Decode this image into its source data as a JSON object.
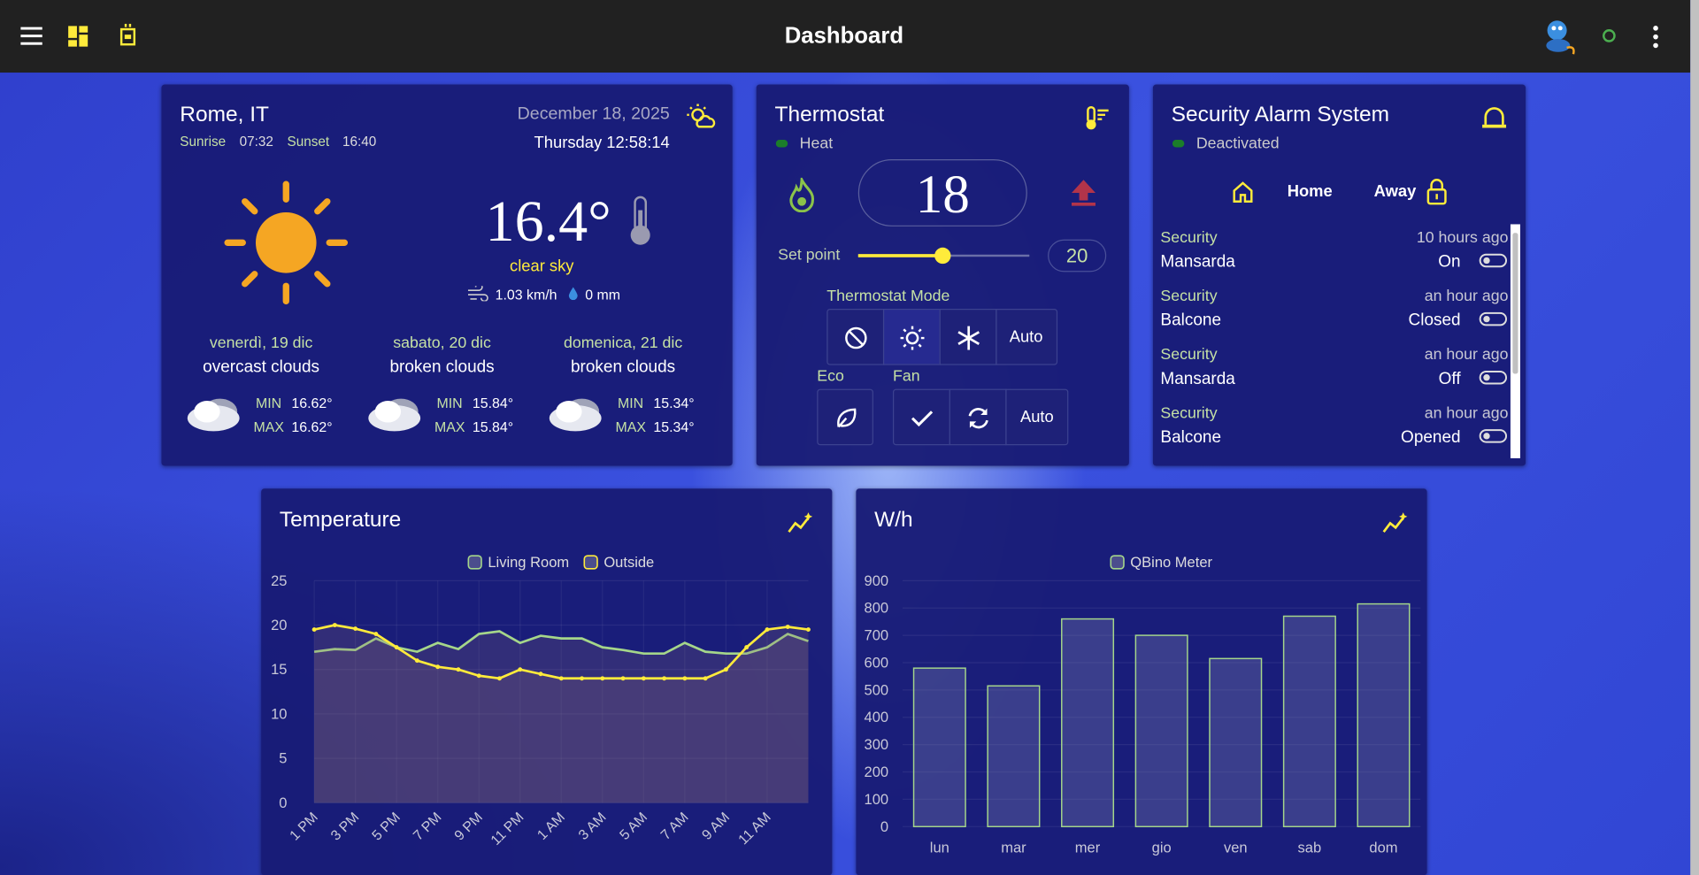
{
  "header": {
    "title": "Dashboard"
  },
  "weather": {
    "location": "Rome, IT",
    "sunrise_label": "Sunrise",
    "sunrise": "07:32",
    "sunset_label": "Sunset",
    "sunset": "16:40",
    "date": "December 18, 2025",
    "time": "Thursday 12:58:14",
    "temperature": "16.4°",
    "condition": "clear sky",
    "wind": "1.03 km/h",
    "rain": "0 mm",
    "forecast": [
      {
        "day": "venerdì, 19 dic",
        "condition": "overcast clouds",
        "min_label": "MIN",
        "min": "16.62°",
        "max_label": "MAX",
        "max": "16.62°"
      },
      {
        "day": "sabato, 20 dic",
        "condition": "broken clouds",
        "min_label": "MIN",
        "min": "15.84°",
        "max_label": "MAX",
        "max": "15.84°"
      },
      {
        "day": "domenica, 21 dic",
        "condition": "broken clouds",
        "min_label": "MIN",
        "min": "15.34°",
        "max_label": "MAX",
        "max": "15.34°"
      }
    ]
  },
  "thermostat": {
    "title": "Thermostat",
    "status": "Heat",
    "current": "18",
    "setpoint_label": "Set point",
    "setpoint": "20",
    "mode_label": "Thermostat Mode",
    "mode_auto": "Auto",
    "eco_label": "Eco",
    "fan_label": "Fan",
    "fan_auto": "Auto"
  },
  "security": {
    "title": "Security Alarm System",
    "status": "Deactivated",
    "home": "Home",
    "away": "Away",
    "items": [
      {
        "category": "Security",
        "time": "10 hours ago",
        "name": "Mansarda",
        "state": "On"
      },
      {
        "category": "Security",
        "time": "an hour ago",
        "name": "Balcone",
        "state": "Closed"
      },
      {
        "category": "Security",
        "time": "an hour ago",
        "name": "Mansarda",
        "state": "Off"
      },
      {
        "category": "Security",
        "time": "an hour ago",
        "name": "Balcone",
        "state": "Opened"
      }
    ]
  },
  "chart_data": [
    {
      "type": "line",
      "title": "Temperature",
      "area": true,
      "grid": true,
      "categories": [
        "1 PM",
        null,
        "3 PM",
        null,
        "5 PM",
        null,
        "7 PM",
        null,
        "9 PM",
        null,
        "11 PM",
        null,
        "1 AM",
        null,
        "3 AM",
        null,
        "5 AM",
        null,
        "7 AM",
        null,
        "9 AM",
        null,
        "11 AM",
        null,
        null
      ],
      "series": [
        {
          "name": "Living Room",
          "color": "#a5d68a",
          "markers": false,
          "values": [
            17,
            17.3,
            17.2,
            18.5,
            17.5,
            17,
            18,
            17.3,
            19,
            19.3,
            18,
            18.8,
            18.5,
            18.5,
            17.5,
            17.2,
            16.8,
            16.8,
            18,
            17,
            16.8,
            16.8,
            17.5,
            19,
            18.2
          ]
        },
        {
          "name": "Outside",
          "color": "#ffeb3b",
          "markers": true,
          "values": [
            19.5,
            20,
            19.6,
            19,
            17.5,
            16,
            15.3,
            15,
            14.3,
            14,
            15,
            14.5,
            14,
            14,
            14,
            14,
            14,
            14,
            14,
            14,
            15,
            17.5,
            19.5,
            19.8,
            19.5
          ]
        }
      ],
      "ylim": [
        0,
        25
      ],
      "yticks": [
        0,
        5,
        10,
        15,
        20,
        25
      ]
    },
    {
      "type": "bar",
      "title": "W/h",
      "grid": true,
      "categories": [
        "lun",
        "mar",
        "mer",
        "gio",
        "ven",
        "sab",
        "dom"
      ],
      "series": [
        {
          "name": "QBino Meter",
          "color": "#a5d68a",
          "values": [
            580,
            515,
            760,
            700,
            615,
            770,
            815
          ]
        }
      ],
      "ylim": [
        0,
        900
      ],
      "yticks": [
        0,
        100,
        200,
        300,
        400,
        500,
        600,
        700,
        800,
        900
      ]
    }
  ]
}
